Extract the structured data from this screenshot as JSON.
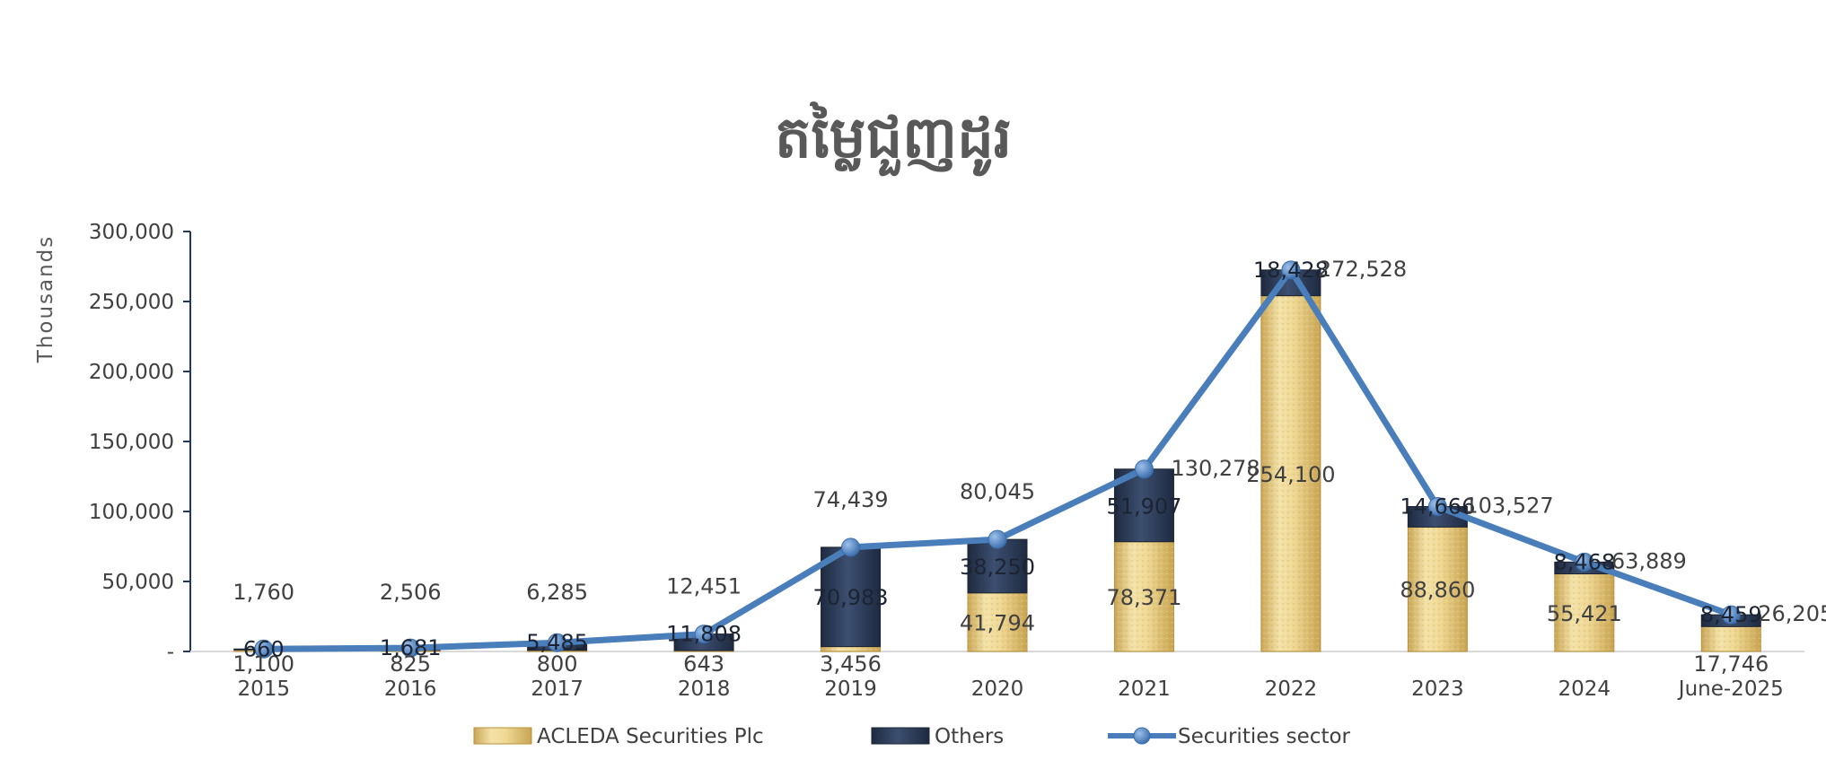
{
  "chart_data": {
    "type": "bar",
    "title": "តម្លៃជួញដូរ",
    "ylabel": "Thousands",
    "xlabel": "",
    "ylim": [
      0,
      300000
    ],
    "yticks": [
      "-",
      "50,000",
      "100,000",
      "150,000",
      "200,000",
      "250,000",
      "300,000"
    ],
    "ytick_values": [
      0,
      50000,
      100000,
      150000,
      200000,
      250000,
      300000
    ],
    "stacked": true,
    "categories": [
      "2015",
      "2016",
      "2017",
      "2018",
      "2019",
      "2020",
      "2021",
      "2022",
      "2023",
      "2024",
      "June-2025"
    ],
    "series": [
      {
        "name": "ACLEDA Securities Plc",
        "type": "bar",
        "color": "#e8cf8a",
        "values": [
          1100,
          825,
          800,
          643,
          3456,
          41794,
          78371,
          254100,
          88860,
          55421,
          17746
        ],
        "labels": [
          "1,100",
          "825",
          "800",
          "643",
          "3,456",
          "41,794",
          "78,371",
          "254,100",
          "88,860",
          "55,421",
          "17,746"
        ]
      },
      {
        "name": "Others",
        "type": "bar",
        "color": "#2e3d5a",
        "values": [
          660,
          1681,
          5485,
          11808,
          70983,
          38250,
          51907,
          18428,
          14666,
          8468,
          8459
        ],
        "labels": [
          "660",
          "1,681",
          "5,485",
          "11,808",
          "70,983",
          "38,250",
          "51,907",
          "18,428",
          "14,666",
          "8,468",
          "8,459"
        ]
      },
      {
        "name": "Securities sector",
        "type": "line",
        "color": "#4a7ebb",
        "values": [
          1760,
          2506,
          6285,
          12451,
          74439,
          80045,
          130278,
          272528,
          103527,
          63889,
          26205
        ],
        "labels": [
          "1,760",
          "2,506",
          "6,285",
          "12,451",
          "74,439",
          "80,045",
          "130,278",
          "272,528",
          "103,527",
          "63,889",
          "26,205"
        ]
      }
    ],
    "legend": "bottom",
    "grid": false
  }
}
